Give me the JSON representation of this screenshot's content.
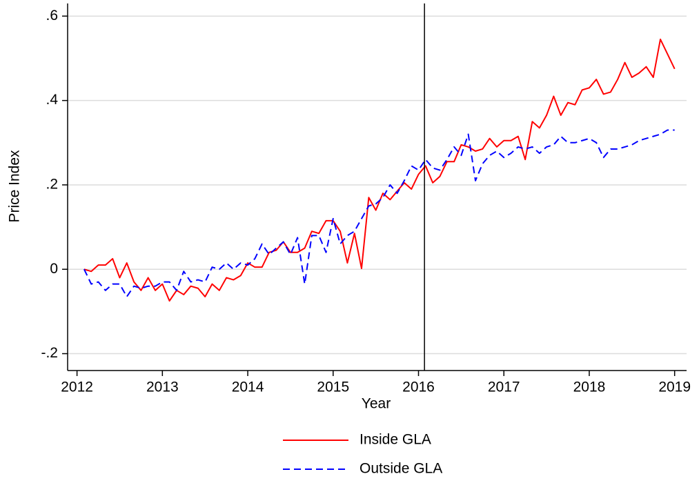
{
  "chart_data": {
    "type": "line",
    "xlabel": "Year",
    "ylabel": "Price Index",
    "x": [
      2012.083,
      2012.167,
      2012.25,
      2012.333,
      2012.417,
      2012.5,
      2012.583,
      2012.667,
      2012.75,
      2012.833,
      2012.917,
      2013,
      2013.083,
      2013.167,
      2013.25,
      2013.333,
      2013.417,
      2013.5,
      2013.583,
      2013.667,
      2013.75,
      2013.833,
      2013.917,
      2014,
      2014.083,
      2014.167,
      2014.25,
      2014.333,
      2014.417,
      2014.5,
      2014.583,
      2014.667,
      2014.75,
      2014.833,
      2014.917,
      2015,
      2015.083,
      2015.167,
      2015.25,
      2015.333,
      2015.417,
      2015.5,
      2015.583,
      2015.667,
      2015.75,
      2015.833,
      2015.917,
      2016,
      2016.083,
      2016.167,
      2016.25,
      2016.333,
      2016.417,
      2016.5,
      2016.583,
      2016.667,
      2016.75,
      2016.833,
      2016.917,
      2017,
      2017.083,
      2017.167,
      2017.25,
      2017.333,
      2017.417,
      2017.5,
      2017.583,
      2017.667,
      2017.75,
      2017.833,
      2017.917,
      2018,
      2018.083,
      2018.167,
      2018.25,
      2018.333,
      2018.417,
      2018.5,
      2018.583,
      2018.667,
      2018.75,
      2018.833,
      2018.917,
      2019
    ],
    "series": [
      {
        "name": "Inside GLA",
        "color": "#ff0000",
        "line_style": "solid",
        "values": [
          0,
          -0.005,
          0.01,
          0.01,
          0.025,
          -0.02,
          0.015,
          -0.03,
          -0.05,
          -0.02,
          -0.05,
          -0.035,
          -0.075,
          -0.05,
          -0.06,
          -0.04,
          -0.045,
          -0.065,
          -0.035,
          -0.05,
          -0.02,
          -0.025,
          -0.015,
          0.015,
          0.005,
          0.005,
          0.04,
          0.045,
          0.065,
          0.04,
          0.04,
          0.05,
          0.09,
          0.085,
          0.115,
          0.115,
          0.09,
          0.015,
          0.085,
          0.002,
          0.17,
          0.14,
          0.18,
          0.165,
          0.185,
          0.205,
          0.19,
          0.225,
          0.245,
          0.205,
          0.22,
          0.255,
          0.255,
          0.295,
          0.29,
          0.28,
          0.285,
          0.31,
          0.29,
          0.305,
          0.305,
          0.315,
          0.26,
          0.35,
          0.335,
          0.365,
          0.41,
          0.365,
          0.395,
          0.39,
          0.425,
          0.43,
          0.45,
          0.415,
          0.42,
          0.45,
          0.49,
          0.455,
          0.465,
          0.48,
          0.455,
          0.545,
          0.51,
          0.475
        ]
      },
      {
        "name": "Outside GLA",
        "color": "#0000ff",
        "line_style": "dashed",
        "values": [
          0,
          -0.035,
          -0.03,
          -0.05,
          -0.035,
          -0.035,
          -0.065,
          -0.04,
          -0.045,
          -0.04,
          -0.04,
          -0.03,
          -0.03,
          -0.05,
          -0.005,
          -0.03,
          -0.025,
          -0.03,
          0.005,
          0,
          0.015,
          0,
          0.015,
          0.01,
          0.025,
          0.06,
          0.035,
          0.05,
          0.065,
          0.035,
          0.075,
          -0.035,
          0.08,
          0.08,
          0.04,
          0.12,
          0.06,
          0.08,
          0.09,
          0.12,
          0.15,
          0.155,
          0.17,
          0.2,
          0.18,
          0.21,
          0.245,
          0.235,
          0.26,
          0.24,
          0.235,
          0.26,
          0.29,
          0.27,
          0.32,
          0.21,
          0.25,
          0.27,
          0.28,
          0.265,
          0.275,
          0.29,
          0.285,
          0.29,
          0.275,
          0.29,
          0.295,
          0.315,
          0.3,
          0.3,
          0.305,
          0.31,
          0.3,
          0.265,
          0.285,
          0.285,
          0.29,
          0.295,
          0.305,
          0.31,
          0.315,
          0.32,
          0.33,
          0.33
        ]
      }
    ],
    "vline": 2016.07,
    "xlim": [
      2011.89,
      2019.14
    ],
    "xticks": [
      2012,
      2013,
      2014,
      2015,
      2016,
      2017,
      2018,
      2019
    ],
    "ylim": [
      -0.24,
      0.63
    ],
    "yticks": [
      {
        "value": -0.2,
        "label": "-.2"
      },
      0,
      {
        "value": 0.2,
        "label": ".2"
      },
      {
        "value": 0.4,
        "label": ".4"
      },
      {
        "value": 0.6,
        "label": ".6"
      }
    ],
    "grid": true,
    "legend": "bottom"
  }
}
